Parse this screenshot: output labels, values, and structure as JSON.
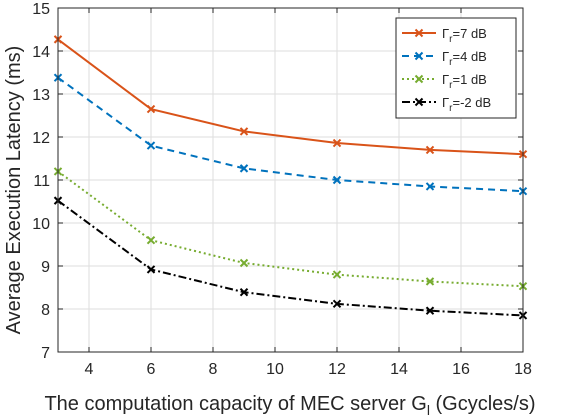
{
  "chart_data": {
    "type": "line",
    "title": "",
    "xlabel": "The computation capacity of MEC server G",
    "xlabel_sub": "l",
    "xlabel_unit": " (Gcycles/s)",
    "ylabel": "Average Execution Latency (ms)",
    "xlim": [
      3,
      18
    ],
    "ylim": [
      7,
      15
    ],
    "xticks": [
      4,
      6,
      8,
      10,
      12,
      14,
      16,
      18
    ],
    "yticks": [
      7,
      8,
      9,
      10,
      11,
      12,
      13,
      14,
      15
    ],
    "grid": true,
    "legend_position": "top-right",
    "x": [
      3,
      6,
      9,
      12,
      15,
      18
    ],
    "series": [
      {
        "name": "Γr=7 dB",
        "legend_symbol": "Γ",
        "legend_sub": "r",
        "legend_rest": "=7 dB",
        "color": "#d95319",
        "dash": "solid",
        "values": [
          14.27,
          12.65,
          12.13,
          11.86,
          11.7,
          11.6
        ]
      },
      {
        "name": "Γr=4 dB",
        "legend_symbol": "Γ",
        "legend_sub": "r",
        "legend_rest": "=4 dB",
        "color": "#0072bd",
        "dash": "dashed",
        "values": [
          13.38,
          11.8,
          11.27,
          11.0,
          10.85,
          10.74
        ]
      },
      {
        "name": "Γr=1 dB",
        "legend_symbol": "Γ",
        "legend_sub": "r",
        "legend_rest": "=1 dB",
        "color": "#77ac30",
        "dash": "dotted",
        "values": [
          11.2,
          9.6,
          9.07,
          8.8,
          8.64,
          8.53
        ]
      },
      {
        "name": "Γr=-2 dB",
        "legend_symbol": "Γ",
        "legend_sub": "r",
        "legend_rest": "=-2 dB",
        "color": "#000000",
        "dash": "dashdot",
        "values": [
          10.52,
          8.92,
          8.39,
          8.12,
          7.96,
          7.85
        ]
      }
    ]
  }
}
